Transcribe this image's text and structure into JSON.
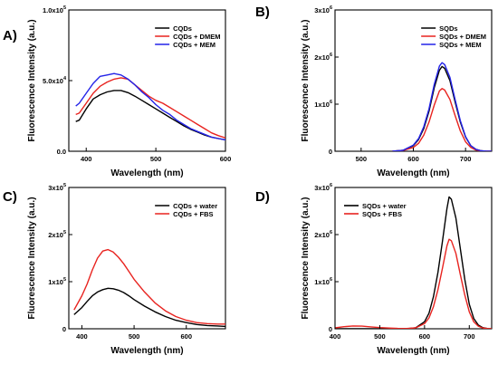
{
  "chart_data": [
    {
      "panel": "A)",
      "type": "line",
      "xlabel": "Wavelength (nm)",
      "ylabel": "Fluorescence Intensity (a.u.)",
      "xlim": [
        375,
        600
      ],
      "ylim": [
        0,
        100000
      ],
      "xticks": [
        {
          "v": 400,
          "label": "400"
        },
        {
          "v": 500,
          "label": "500"
        },
        {
          "v": 600,
          "label": "600"
        }
      ],
      "yticks": [
        {
          "v": 0,
          "label": "0.0"
        },
        {
          "v": 50000,
          "label": "5.0x10",
          "exp": "4"
        },
        {
          "v": 100000,
          "label": "1.0x10",
          "exp": "5"
        }
      ],
      "legend_position": "top-right",
      "series": [
        {
          "name": "CQDs",
          "color": "#000000",
          "x": [
            385,
            390,
            400,
            410,
            420,
            430,
            440,
            450,
            460,
            470,
            480,
            490,
            500,
            510,
            520,
            530,
            540,
            550,
            560,
            570,
            580,
            590,
            600
          ],
          "y": [
            21000,
            22000,
            30000,
            37000,
            40000,
            42000,
            43000,
            43000,
            41500,
            39000,
            36000,
            33000,
            30000,
            27000,
            24000,
            21000,
            18000,
            15500,
            13500,
            11500,
            10000,
            9000,
            8000
          ]
        },
        {
          "name": "CQDs + DMEM",
          "color": "#e8231f",
          "x": [
            385,
            390,
            400,
            410,
            420,
            430,
            440,
            450,
            460,
            470,
            480,
            490,
            500,
            510,
            520,
            530,
            540,
            550,
            560,
            570,
            580,
            590,
            600
          ],
          "y": [
            26000,
            27000,
            34000,
            41000,
            46000,
            49000,
            51000,
            52000,
            51000,
            47000,
            43000,
            39000,
            36000,
            34000,
            31000,
            28000,
            25000,
            22000,
            19000,
            16000,
            13000,
            11000,
            9500
          ]
        },
        {
          "name": "CQDs + MEM",
          "color": "#2323e8",
          "x": [
            385,
            390,
            400,
            410,
            420,
            430,
            440,
            450,
            460,
            470,
            480,
            490,
            500,
            510,
            520,
            530,
            540,
            550,
            560,
            570,
            580,
            590,
            600
          ],
          "y": [
            32000,
            34000,
            41000,
            48000,
            53000,
            54000,
            55000,
            54000,
            51000,
            47000,
            42000,
            38000,
            33000,
            29000,
            26000,
            22000,
            19000,
            16000,
            14000,
            12000,
            10000,
            9000,
            8000
          ]
        }
      ]
    },
    {
      "panel": "B)",
      "type": "line",
      "xlabel": "Wavelength (nm)",
      "ylabel": "Fluorescence Intensity (a.u.)",
      "xlim": [
        450,
        750
      ],
      "ylim": [
        0,
        3000000
      ],
      "xticks": [
        {
          "v": 500,
          "label": "500"
        },
        {
          "v": 600,
          "label": "600"
        },
        {
          "v": 700,
          "label": "700"
        }
      ],
      "yticks": [
        {
          "v": 0,
          "label": "0"
        },
        {
          "v": 1000000,
          "label": "1x10",
          "exp": "6"
        },
        {
          "v": 2000000,
          "label": "2x10",
          "exp": "6"
        },
        {
          "v": 3000000,
          "label": "3x10",
          "exp": "6"
        }
      ],
      "legend_position": "top-right",
      "series": [
        {
          "name": "SQDs",
          "color": "#000000",
          "x": [
            560,
            580,
            600,
            610,
            620,
            630,
            640,
            650,
            655,
            660,
            670,
            680,
            690,
            700,
            710,
            720,
            730,
            740,
            750
          ],
          "y": [
            0,
            20000,
            120000,
            250000,
            480000,
            850000,
            1350000,
            1720000,
            1800000,
            1760000,
            1500000,
            1050000,
            620000,
            300000,
            120000,
            40000,
            10000,
            0,
            0
          ]
        },
        {
          "name": "SQDs + DMEM",
          "color": "#e8231f",
          "x": [
            560,
            580,
            600,
            610,
            620,
            630,
            640,
            650,
            655,
            660,
            670,
            680,
            690,
            700,
            710,
            720,
            730,
            740,
            750
          ],
          "y": [
            0,
            15000,
            80000,
            170000,
            340000,
            620000,
            980000,
            1280000,
            1330000,
            1300000,
            1100000,
            760000,
            430000,
            200000,
            80000,
            25000,
            8000,
            0,
            0
          ]
        },
        {
          "name": "SQDs + MEM",
          "color": "#2323e8",
          "x": [
            560,
            580,
            600,
            610,
            620,
            630,
            640,
            650,
            655,
            660,
            670,
            680,
            690,
            700,
            710,
            720,
            730,
            740,
            750
          ],
          "y": [
            0,
            20000,
            130000,
            270000,
            520000,
            900000,
            1420000,
            1810000,
            1880000,
            1840000,
            1570000,
            1100000,
            650000,
            310000,
            120000,
            40000,
            10000,
            0,
            0
          ]
        }
      ]
    },
    {
      "panel": "C)",
      "type": "line",
      "xlabel": "Wavelength (nm)",
      "ylabel": "Fluorescence Intensity (a.u.)",
      "xlim": [
        375,
        675
      ],
      "ylim": [
        0,
        300000
      ],
      "xticks": [
        {
          "v": 400,
          "label": "400"
        },
        {
          "v": 500,
          "label": "500"
        },
        {
          "v": 600,
          "label": "600"
        }
      ],
      "yticks": [
        {
          "v": 0,
          "label": "0"
        },
        {
          "v": 100000,
          "label": "1x10",
          "exp": "5"
        },
        {
          "v": 200000,
          "label": "2x10",
          "exp": "5"
        },
        {
          "v": 300000,
          "label": "3x10",
          "exp": "5"
        }
      ],
      "legend_position": "top-right",
      "series": [
        {
          "name": "CQDs + water",
          "color": "#000000",
          "x": [
            385,
            400,
            410,
            420,
            430,
            440,
            450,
            460,
            470,
            480,
            490,
            500,
            520,
            540,
            560,
            580,
            600,
            620,
            640,
            660,
            675
          ],
          "y": [
            30000,
            45000,
            58000,
            70000,
            78000,
            83000,
            86000,
            85000,
            82000,
            77000,
            70000,
            62000,
            48000,
            36000,
            26000,
            18000,
            13000,
            9000,
            7000,
            6000,
            5000
          ]
        },
        {
          "name": "CQDs + FBS",
          "color": "#e8231f",
          "x": [
            385,
            400,
            410,
            420,
            430,
            440,
            450,
            460,
            470,
            480,
            490,
            500,
            520,
            540,
            560,
            580,
            600,
            620,
            640,
            660,
            675
          ],
          "y": [
            40000,
            70000,
            95000,
            125000,
            150000,
            165000,
            168000,
            163000,
            152000,
            138000,
            122000,
            105000,
            78000,
            55000,
            38000,
            26000,
            18000,
            13000,
            11000,
            10000,
            10000
          ]
        }
      ]
    },
    {
      "panel": "D)",
      "type": "line",
      "xlabel": "Wavelength (nm)",
      "ylabel": "Fluorescence Intensity (a.u.)",
      "xlim": [
        400,
        750
      ],
      "ylim": [
        0,
        3000000
      ],
      "xticks": [
        {
          "v": 400,
          "label": "400"
        },
        {
          "v": 500,
          "label": "500"
        },
        {
          "v": 600,
          "label": "600"
        },
        {
          "v": 700,
          "label": "700"
        }
      ],
      "yticks": [
        {
          "v": 0,
          "label": "0"
        },
        {
          "v": 1000000,
          "label": "1x10",
          "exp": "6"
        },
        {
          "v": 2000000,
          "label": "2x10",
          "exp": "6"
        },
        {
          "v": 3000000,
          "label": "3x10",
          "exp": "6"
        }
      ],
      "legend_position": "top-left",
      "series": [
        {
          "name": "SQDs + water",
          "color": "#000000",
          "x": [
            400,
            500,
            560,
            580,
            600,
            610,
            620,
            630,
            640,
            650,
            655,
            660,
            670,
            680,
            690,
            700,
            710,
            720,
            730,
            740,
            750
          ],
          "y": [
            0,
            0,
            0,
            20000,
            150000,
            330000,
            680000,
            1200000,
            1850000,
            2550000,
            2800000,
            2750000,
            2350000,
            1700000,
            1050000,
            520000,
            220000,
            80000,
            25000,
            5000,
            0
          ]
        },
        {
          "name": "SQDs + FBS",
          "color": "#e8231f",
          "x": [
            400,
            420,
            440,
            460,
            480,
            500,
            520,
            540,
            560,
            580,
            600,
            610,
            620,
            630,
            640,
            650,
            655,
            660,
            670,
            680,
            690,
            700,
            710,
            720,
            730,
            740,
            750
          ],
          "y": [
            20000,
            45000,
            60000,
            55000,
            40000,
            25000,
            15000,
            8000,
            5000,
            20000,
            110000,
            230000,
            470000,
            830000,
            1280000,
            1760000,
            1900000,
            1870000,
            1600000,
            1150000,
            720000,
            360000,
            150000,
            55000,
            18000,
            5000,
            0
          ]
        }
      ]
    }
  ]
}
